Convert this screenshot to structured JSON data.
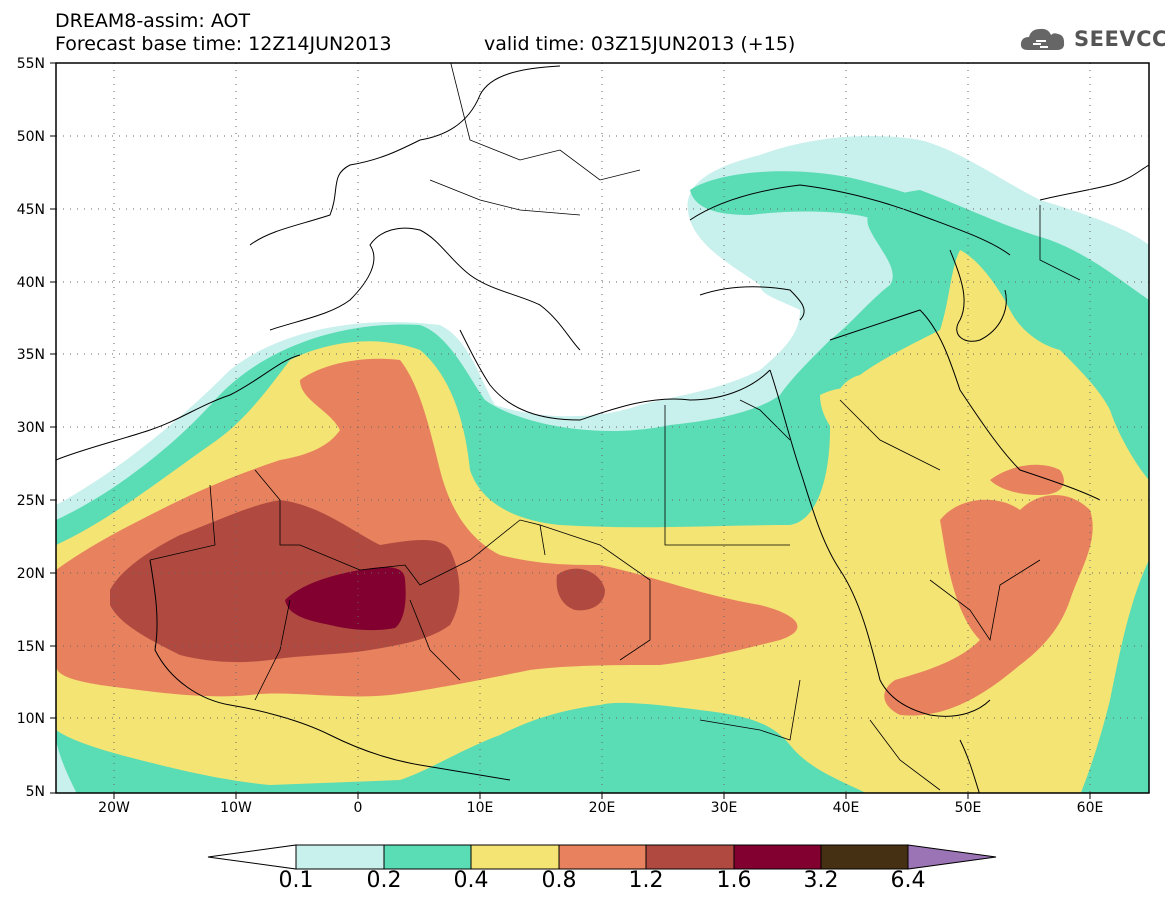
{
  "header": {
    "title": "DREAM8-assim: AOT",
    "base_time": "Forecast base time: 12Z14JUN2013",
    "valid_time": "valid time: 03Z15JUN2013 (+15)",
    "logo_text": "SEEVCCC",
    "logo_icon": "cloud-icon"
  },
  "map": {
    "lat_labels": [
      "55N",
      "50N",
      "45N",
      "40N",
      "35N",
      "30N",
      "25N",
      "20N",
      "15N",
      "10N",
      "5N"
    ],
    "lon_labels": [
      "20W",
      "10W",
      "0",
      "10E",
      "20E",
      "30E",
      "40E",
      "50E",
      "60E"
    ],
    "lat_range": [
      5,
      55
    ],
    "lon_range": [
      -25,
      65
    ],
    "grid": "dotted"
  },
  "colorbar": {
    "levels": [
      "0.1",
      "0.2",
      "0.4",
      "0.8",
      "1.2",
      "1.6",
      "3.2",
      "6.4"
    ],
    "colors": [
      "#c8f0ec",
      "#5adcb4",
      "#f4e474",
      "#e8825e",
      "#b04a40",
      "#820030",
      "#463014",
      "#9a74b4"
    ],
    "under_color": "#ffffff",
    "over_color": "#9a74b4"
  }
}
